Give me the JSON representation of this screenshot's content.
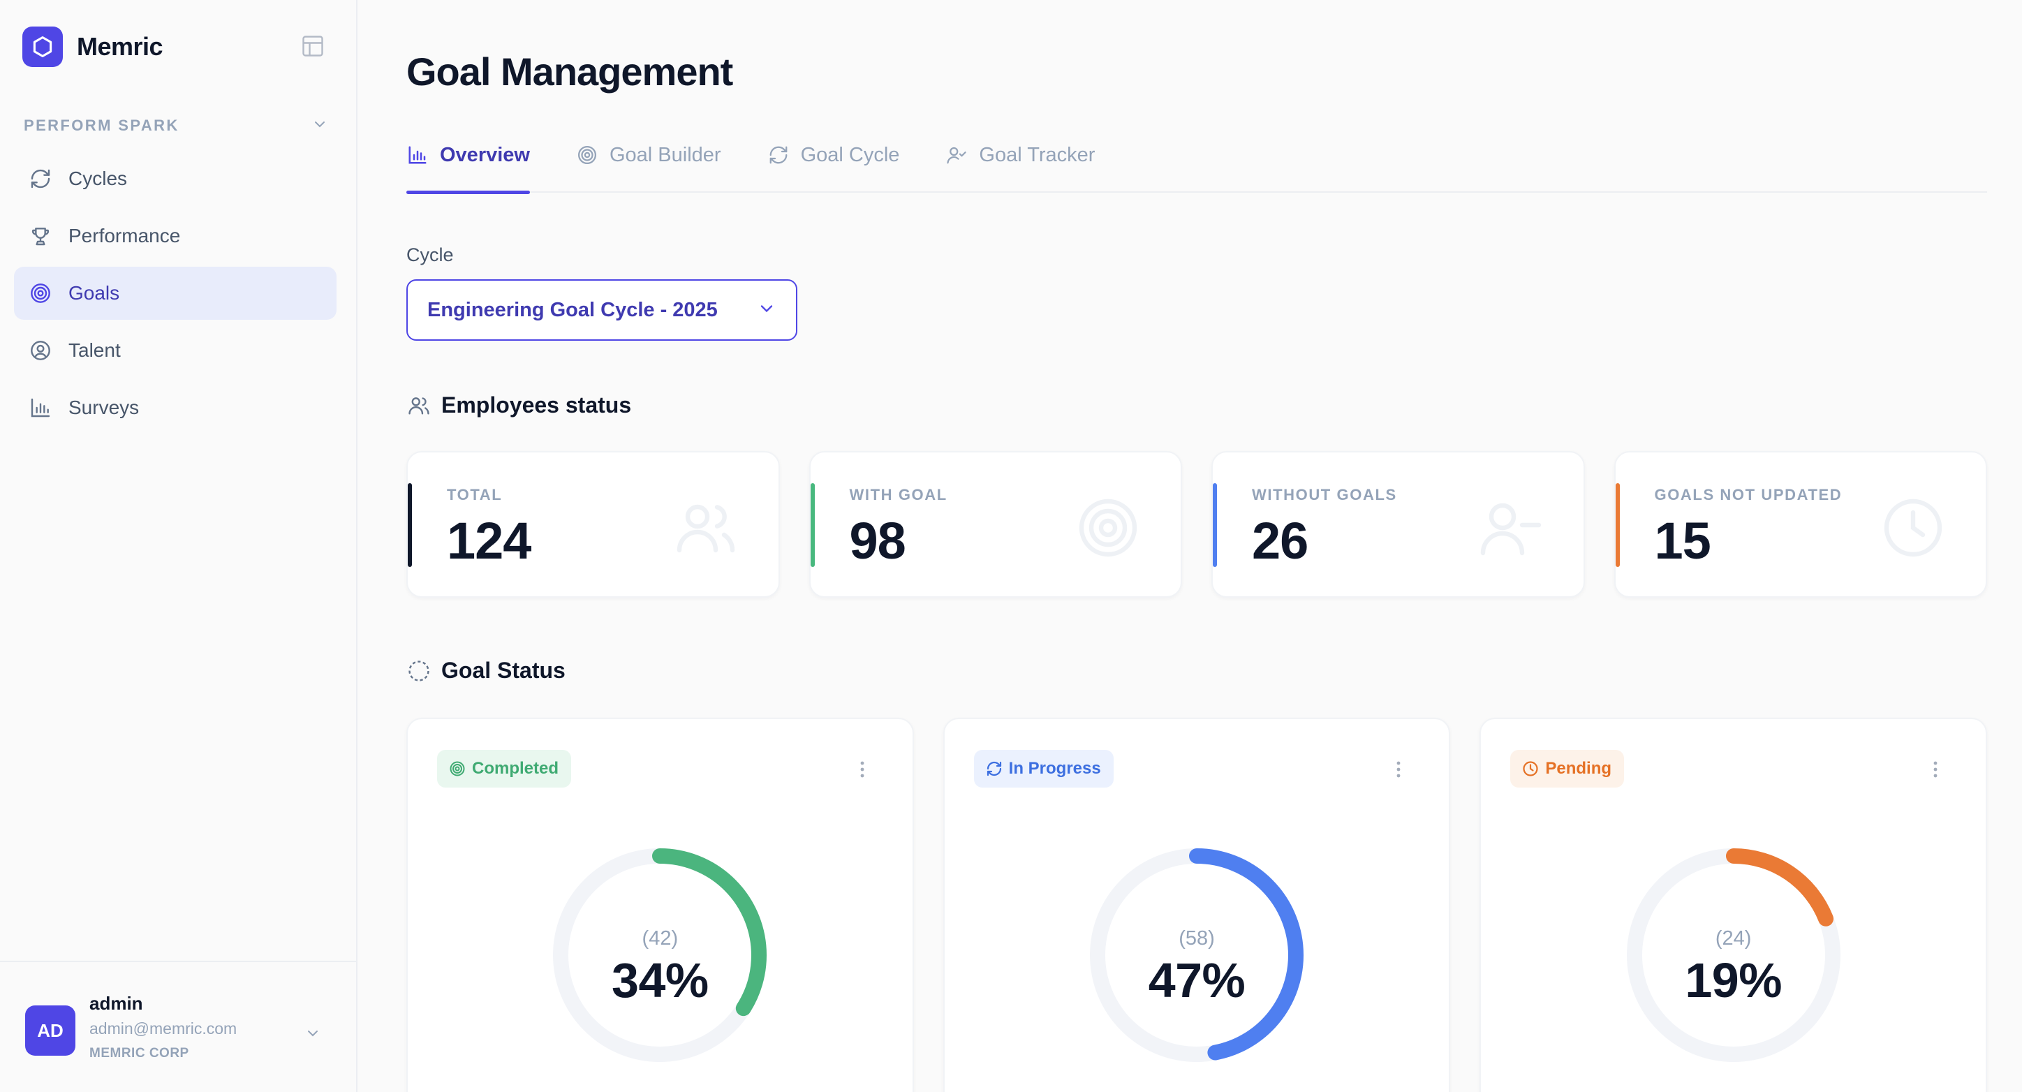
{
  "app": {
    "name": "Memric"
  },
  "sidebar": {
    "section_label": "PERFORM SPARK",
    "items": [
      {
        "label": "Cycles",
        "icon": "refresh-icon",
        "active": false
      },
      {
        "label": "Performance",
        "icon": "trophy-icon",
        "active": false
      },
      {
        "label": "Goals",
        "icon": "target-icon",
        "active": true
      },
      {
        "label": "Talent",
        "icon": "user-circle-icon",
        "active": false
      },
      {
        "label": "Surveys",
        "icon": "bar-chart-icon",
        "active": false
      }
    ]
  },
  "user": {
    "initials": "AD",
    "name": "admin",
    "email": "admin@memric.com",
    "org": "MEMRIC CORP"
  },
  "page": {
    "title": "Goal Management",
    "tabs": [
      {
        "label": "Overview",
        "icon": "bar-chart-icon",
        "active": true
      },
      {
        "label": "Goal Builder",
        "icon": "target-icon",
        "active": false
      },
      {
        "label": "Goal Cycle",
        "icon": "refresh-icon",
        "active": false
      },
      {
        "label": "Goal Tracker",
        "icon": "user-check-icon",
        "active": false
      }
    ],
    "cycle": {
      "label": "Cycle",
      "value": "Engineering Goal Cycle - 2025"
    }
  },
  "employees_status": {
    "title": "Employees status",
    "stats": [
      {
        "label": "TOTAL",
        "value": "124",
        "color": "#0f172a",
        "icon": "users-icon"
      },
      {
        "label": "WITH GOAL",
        "value": "98",
        "color": "#48b87e",
        "icon": "target-icon"
      },
      {
        "label": "WITHOUT GOALS",
        "value": "26",
        "color": "#4f7ff0",
        "icon": "user-minus-icon"
      },
      {
        "label": "GOALS NOT UPDATED",
        "value": "15",
        "color": "#ea7a35",
        "icon": "clock-icon"
      }
    ]
  },
  "goal_status": {
    "title": "Goal Status",
    "cards": [
      {
        "label": "Completed",
        "count": "(42)",
        "percent_label": "34%",
        "percent": 34,
        "color": "#4bb57e",
        "badge_bg": "#e9f7ef",
        "icon": "target-icon"
      },
      {
        "label": "In Progress",
        "count": "(58)",
        "percent_label": "47%",
        "percent": 47,
        "color": "#4f7ff0",
        "badge_bg": "#ebf1fe",
        "icon": "refresh-icon"
      },
      {
        "label": "Pending",
        "count": "(24)",
        "percent_label": "19%",
        "percent": 19,
        "color": "#ea7a35",
        "badge_bg": "#fdf2e9",
        "icon": "clock-icon"
      }
    ]
  }
}
